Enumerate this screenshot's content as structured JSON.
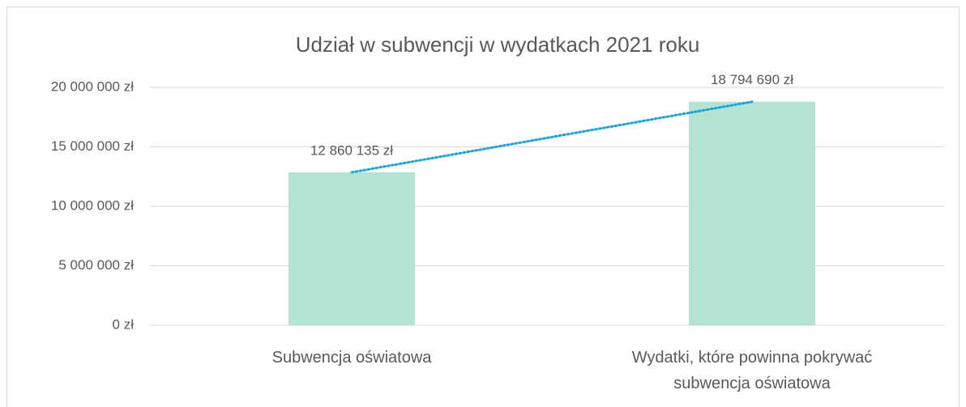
{
  "chart_data": {
    "type": "bar",
    "title": "Udział w subwencji w wydatkach 2021 roku",
    "categories": [
      "Subwencja oświatowa",
      "Wydatki, które powinna pokrywać subwencja oświatowa"
    ],
    "values": [
      12860135,
      18794690
    ],
    "value_labels": [
      "12 860 135 zł",
      "18 794 690 zł"
    ],
    "color": "#b3e3d4",
    "trendline_color": "#1fa3d6",
    "ylim": [
      0,
      20000000
    ],
    "yticks": [
      {
        "value": 0,
        "label": "0 zł"
      },
      {
        "value": 5000000,
        "label": "5 000 000 zł"
      },
      {
        "value": 10000000,
        "label": "10 000 000 zł"
      },
      {
        "value": 15000000,
        "label": "15 000 000 zł"
      },
      {
        "value": 20000000,
        "label": "20 000 000 zł"
      }
    ],
    "grid": true
  }
}
